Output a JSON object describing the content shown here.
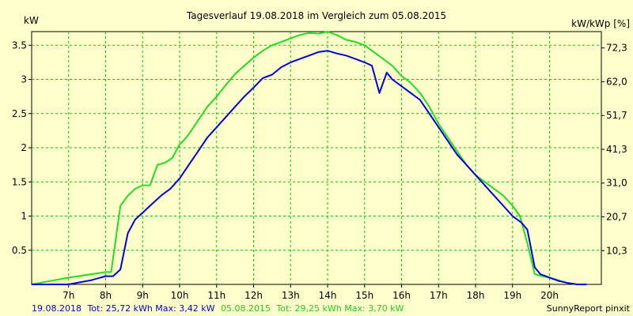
{
  "chart_data": {
    "type": "line",
    "title": "Tagesverlauf 19.08.2018 im Vergleich zum 05.08.2015",
    "ylabel_left": "kW",
    "ylabel_right": "kW/kWp [%]",
    "xlim": [
      6,
      21.4
    ],
    "ylim": [
      0,
      3.7
    ],
    "x_ticks": [
      7,
      8,
      9,
      10,
      11,
      12,
      13,
      14,
      15,
      16,
      17,
      18,
      19,
      20
    ],
    "x_tick_labels": [
      "7h",
      "8h",
      "9h",
      "10h",
      "11h",
      "12h",
      "13h",
      "14h",
      "15h",
      "16h",
      "17h",
      "18h",
      "19h",
      "20h"
    ],
    "y_ticks": [
      0.5,
      1,
      1.5,
      2,
      2.5,
      3,
      3.5
    ],
    "y_tick_labels": [
      "0.5",
      "1",
      "1.5",
      "2",
      "2.5",
      "3",
      "3.5"
    ],
    "y2_ticks": [
      0.494,
      0.989,
      1.483,
      1.978,
      2.472,
      2.967,
      3.461
    ],
    "y2_tick_labels": [
      "10,3",
      "20,7",
      "31,0",
      "41,3",
      "51,7",
      "62,0",
      "72,3"
    ],
    "grid": true,
    "series": [
      {
        "name": "19.08.2018",
        "color": "#0000dd",
        "x": [
          6.0,
          6.5,
          7.0,
          7.3,
          7.6,
          8.0,
          8.2,
          8.4,
          8.6,
          8.8,
          9.0,
          9.2,
          9.5,
          9.75,
          10.0,
          10.25,
          10.5,
          10.75,
          11.0,
          11.25,
          11.5,
          11.75,
          12.0,
          12.25,
          12.5,
          12.75,
          13.0,
          13.25,
          13.5,
          13.75,
          14.0,
          14.25,
          14.5,
          14.75,
          15.0,
          15.2,
          15.4,
          15.6,
          15.75,
          16.0,
          16.25,
          16.5,
          16.75,
          17.0,
          17.25,
          17.5,
          17.75,
          18.0,
          18.25,
          18.5,
          18.75,
          19.0,
          19.25,
          19.4,
          19.6,
          19.75,
          20.0,
          20.25,
          20.5,
          20.75,
          21.0
        ],
        "y": [
          0,
          0,
          0,
          0.03,
          0.06,
          0.12,
          0.12,
          0.22,
          0.75,
          0.95,
          1.05,
          1.15,
          1.3,
          1.4,
          1.55,
          1.75,
          1.95,
          2.15,
          2.3,
          2.45,
          2.6,
          2.75,
          2.88,
          3.02,
          3.07,
          3.18,
          3.25,
          3.3,
          3.35,
          3.4,
          3.42,
          3.38,
          3.35,
          3.3,
          3.25,
          3.2,
          2.8,
          3.1,
          3.0,
          2.9,
          2.8,
          2.7,
          2.5,
          2.3,
          2.1,
          1.9,
          1.75,
          1.6,
          1.45,
          1.3,
          1.15,
          1.0,
          0.9,
          0.8,
          0.25,
          0.15,
          0.1,
          0.05,
          0.02,
          0,
          0
        ]
      },
      {
        "name": "05.08.2015",
        "color": "#22dd22",
        "x": [
          6.0,
          6.5,
          7.0,
          7.5,
          8.0,
          8.15,
          8.4,
          8.6,
          8.8,
          9.0,
          9.2,
          9.4,
          9.6,
          9.8,
          10.0,
          10.1,
          10.25,
          10.5,
          10.75,
          11.0,
          11.25,
          11.5,
          11.75,
          12.0,
          12.25,
          12.5,
          12.75,
          13.0,
          13.25,
          13.5,
          13.75,
          14.0,
          14.25,
          14.5,
          14.75,
          15.0,
          15.25,
          15.5,
          15.75,
          16.0,
          16.25,
          16.5,
          16.75,
          17.0,
          17.25,
          17.5,
          17.75,
          18.0,
          18.25,
          18.5,
          18.75,
          19.0,
          19.2,
          19.4,
          19.6,
          19.8,
          20.0,
          20.25,
          20.5,
          20.75,
          21.0
        ],
        "y": [
          0,
          0.05,
          0.1,
          0.14,
          0.18,
          0.18,
          1.15,
          1.3,
          1.4,
          1.45,
          1.45,
          1.75,
          1.78,
          1.85,
          2.05,
          2.1,
          2.2,
          2.4,
          2.6,
          2.75,
          2.92,
          3.08,
          3.2,
          3.32,
          3.42,
          3.5,
          3.55,
          3.6,
          3.65,
          3.68,
          3.67,
          3.7,
          3.65,
          3.58,
          3.55,
          3.5,
          3.4,
          3.3,
          3.2,
          3.05,
          2.95,
          2.8,
          2.6,
          2.35,
          2.15,
          1.95,
          1.75,
          1.6,
          1.5,
          1.4,
          1.3,
          1.15,
          1.0,
          0.6,
          0.15,
          0.12,
          0.1,
          0.06,
          0.02,
          0,
          0
        ]
      }
    ]
  },
  "footer": {
    "date_a": "19.08.2018",
    "stats_a": "Tot: 25,72 kWh Max: 3,42 kW",
    "date_b": "05.08.2015",
    "stats_b": "Tot: 29,25 kWh Max: 3,70 kW",
    "credit": "SunnyReport pinxit"
  }
}
